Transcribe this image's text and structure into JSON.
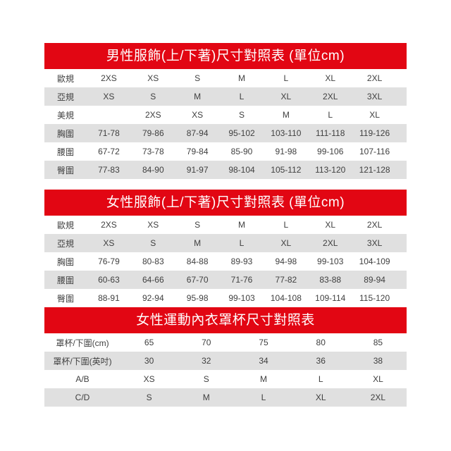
{
  "colors": {
    "header_bg": "#e20613",
    "header_text": "#ffffff",
    "row_bg": "#ffffff",
    "row_alt_bg": "#e0e0e0",
    "cell_text": "#3f3f3f"
  },
  "tables": [
    {
      "title": "男性服飾(上/下著)尺寸對照表 (單位cm)",
      "rows": [
        {
          "label": "歐規",
          "values": [
            "2XS",
            "XS",
            "S",
            "M",
            "L",
            "XL",
            "2XL"
          ]
        },
        {
          "label": "亞規",
          "values": [
            "XS",
            "S",
            "M",
            "L",
            "XL",
            "2XL",
            "3XL"
          ]
        },
        {
          "label": "美規",
          "values": [
            "",
            "2XS",
            "XS",
            "S",
            "M",
            "L",
            "XL"
          ]
        },
        {
          "label": "胸圍",
          "values": [
            "71-78",
            "79-86",
            "87-94",
            "95-102",
            "103-110",
            "111-118",
            "119-126"
          ]
        },
        {
          "label": "腰圍",
          "values": [
            "67-72",
            "73-78",
            "79-84",
            "85-90",
            "91-98",
            "99-106",
            "107-116"
          ]
        },
        {
          "label": "臀圍",
          "values": [
            "77-83",
            "84-90",
            "91-97",
            "98-104",
            "105-112",
            "113-120",
            "121-128"
          ]
        }
      ]
    },
    {
      "title": "女性服飾(上/下著)尺寸對照表 (單位cm)",
      "rows": [
        {
          "label": "歐規",
          "values": [
            "2XS",
            "XS",
            "S",
            "M",
            "L",
            "XL",
            "2XL"
          ]
        },
        {
          "label": "亞規",
          "values": [
            "XS",
            "S",
            "M",
            "L",
            "XL",
            "2XL",
            "3XL"
          ]
        },
        {
          "label": "胸圍",
          "values": [
            "76-79",
            "80-83",
            "84-88",
            "89-93",
            "94-98",
            "99-103",
            "104-109"
          ]
        },
        {
          "label": "腰圍",
          "values": [
            "60-63",
            "64-66",
            "67-70",
            "71-76",
            "77-82",
            "83-88",
            "89-94"
          ]
        },
        {
          "label": "臀圍",
          "values": [
            "88-91",
            "92-94",
            "95-98",
            "99-103",
            "104-108",
            "109-114",
            "115-120"
          ]
        }
      ]
    },
    {
      "title": "女性運動內衣罩杯尺寸對照表",
      "rows": [
        {
          "label": "罩杯/下圍(cm)",
          "values": [
            "65",
            "70",
            "75",
            "80",
            "85"
          ]
        },
        {
          "label": "罩杯/下圍(英吋)",
          "values": [
            "30",
            "32",
            "34",
            "36",
            "38"
          ]
        },
        {
          "label": "A/B",
          "values": [
            "XS",
            "S",
            "M",
            "L",
            "XL"
          ]
        },
        {
          "label": "C/D",
          "values": [
            "S",
            "M",
            "L",
            "XL",
            "2XL"
          ]
        }
      ]
    }
  ]
}
